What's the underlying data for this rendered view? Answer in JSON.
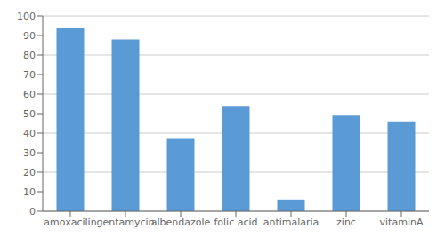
{
  "chart_data": {
    "type": "bar",
    "categories": [
      "amoxacilin",
      "gentamycin",
      "albendazole",
      "folic acid",
      "antimalaria",
      "zinc",
      "vitaminA"
    ],
    "values": [
      94,
      88,
      37,
      54,
      6,
      49,
      46
    ],
    "color": "#5b9bd5",
    "ylim": [
      0,
      100
    ],
    "yticks": [
      0,
      10,
      20,
      30,
      40,
      50,
      60,
      70,
      80,
      90,
      100
    ],
    "grid": true
  }
}
